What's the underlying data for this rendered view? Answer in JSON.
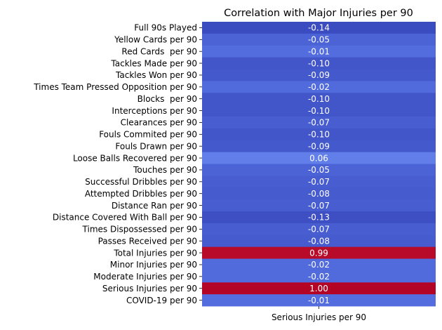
{
  "chart_data": {
    "type": "heatmap",
    "title": "Correlation with Major Injuries per 90",
    "columns": [
      "Serious Injuries per 90"
    ],
    "rows": [
      "Full 90s Played",
      "Yellow Cards per 90",
      "Red Cards  per 90",
      "Tackles Made per 90",
      "Tackles Won per 90",
      "Times Team Pressed Opposition per 90",
      "Blocks  per 90",
      "Interceptions per 90",
      "Clearances per 90",
      "Fouls Commited per 90",
      "Fouls Drawn per 90",
      "Loose Balls Recovered per 90",
      "Touches per 90",
      "Successful Dribbles per 90",
      "Attempted Dribbles per 90",
      "Distance Ran per 90",
      "Distance Covered With Ball per 90",
      "Times Dispossessed per 90",
      "Passes Received per 90",
      "Total Injuries per 90",
      "Minor Injuries per 90",
      "Moderate Injuries per 90",
      "Serious Injuries per 90",
      "COVID-19 per 90"
    ],
    "values": [
      -0.14,
      -0.05,
      -0.01,
      -0.1,
      -0.09,
      -0.02,
      -0.1,
      -0.1,
      -0.07,
      -0.1,
      -0.09,
      0.06,
      -0.05,
      -0.07,
      -0.08,
      -0.07,
      -0.13,
      -0.07,
      -0.08,
      0.99,
      -0.02,
      -0.02,
      1.0,
      -0.01
    ],
    "value_labels": [
      "-0.14",
      "-0.05",
      "-0.01",
      "-0.10",
      "-0.09",
      "-0.02",
      "-0.10",
      "-0.10",
      "-0.07",
      "-0.10",
      "-0.09",
      "0.06",
      "-0.05",
      "-0.07",
      "-0.08",
      "-0.07",
      "-0.13",
      "-0.07",
      "-0.08",
      "0.99",
      "-0.02",
      "-0.02",
      "1.00",
      "-0.01"
    ],
    "colormap": "coolwarm",
    "color_range": [
      -0.14,
      1.0
    ],
    "colorbar": false,
    "grid": false
  }
}
